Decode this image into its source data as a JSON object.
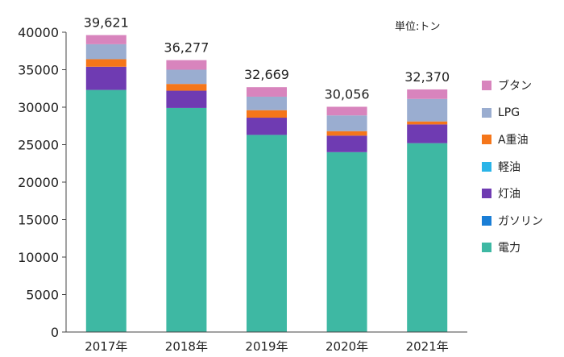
{
  "unit_label": "単位:トン",
  "chart_data": {
    "type": "bar",
    "stacked": true,
    "categories": [
      "2017年",
      "2018年",
      "2019年",
      "2020年",
      "2021年"
    ],
    "totals": [
      "39,621",
      "36,277",
      "32,669",
      "30,056",
      "32,370"
    ],
    "ylim": [
      0,
      40000
    ],
    "yticks": [
      0,
      5000,
      10000,
      15000,
      20000,
      25000,
      30000,
      35000,
      40000
    ],
    "grid": false,
    "legend_position": "right",
    "series": [
      {
        "name": "電力",
        "color": "#3eb8a3",
        "values": [
          32300,
          29900,
          26300,
          24000,
          25200
        ]
      },
      {
        "name": "ガソリン",
        "color": "#1a7ed6",
        "values": [
          0,
          0,
          0,
          0,
          0
        ]
      },
      {
        "name": "軽油",
        "color": "#2ab4e8",
        "values": [
          0,
          0,
          0,
          0,
          0
        ]
      },
      {
        "name": "灯油",
        "color": "#6f3bb2",
        "values": [
          3100,
          2300,
          2300,
          2200,
          2500
        ]
      },
      {
        "name": "A重油",
        "color": "#f5761a",
        "values": [
          1000,
          900,
          1000,
          600,
          400
        ]
      },
      {
        "name": "LPG",
        "color": "#9aadd0",
        "values": [
          2000,
          1900,
          1800,
          2100,
          3000
        ]
      },
      {
        "name": "ブタン",
        "color": "#d884bd",
        "values": [
          1221,
          1277,
          1269,
          1156,
          1270
        ]
      }
    ]
  },
  "legend": [
    {
      "label": "ブタン",
      "color": "#d884bd"
    },
    {
      "label": "LPG",
      "color": "#9aadd0"
    },
    {
      "label": "A重油",
      "color": "#f5761a"
    },
    {
      "label": "軽油",
      "color": "#2ab4e8"
    },
    {
      "label": "灯油",
      "color": "#6f3bb2"
    },
    {
      "label": "ガソリン",
      "color": "#1a7ed6"
    },
    {
      "label": "電力",
      "color": "#3eb8a3"
    }
  ]
}
